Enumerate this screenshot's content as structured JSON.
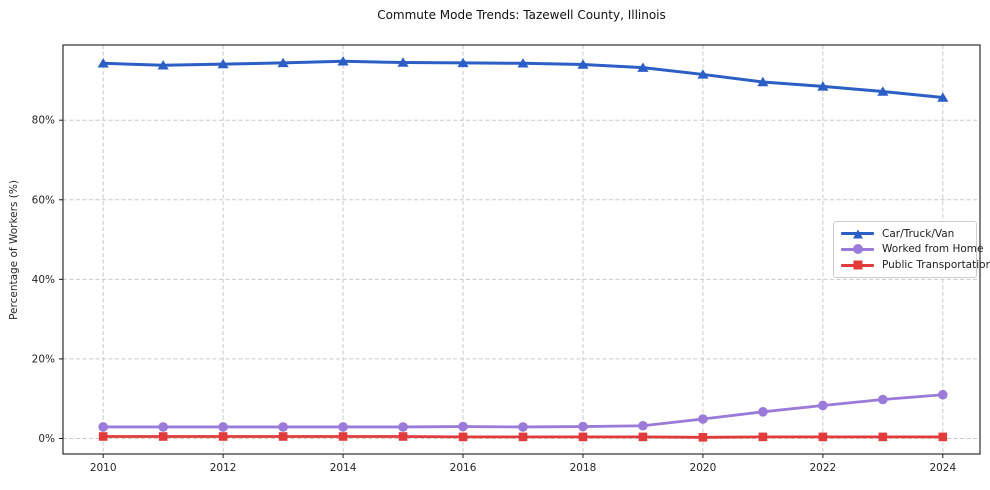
{
  "chart_data": {
    "type": "line",
    "title": "Commute Mode Trends: Tazewell County, Illinois",
    "xlabel": "",
    "ylabel": "Percentage of Workers (%)",
    "x": [
      2010,
      2011,
      2012,
      2013,
      2014,
      2015,
      2016,
      2017,
      2018,
      2019,
      2020,
      2021,
      2022,
      2023,
      2024
    ],
    "series": [
      {
        "name": "Car/Truck/Van",
        "color": "#2c5fc5",
        "marker": "triangle-up",
        "line_width": 3,
        "values": [
          94.3,
          93.8,
          94.1,
          94.4,
          94.8,
          94.5,
          94.4,
          94.3,
          94.0,
          93.2,
          91.5,
          89.6,
          88.5,
          87.2,
          85.7
        ]
      },
      {
        "name": "Worked from Home",
        "color": "#9a7bd9",
        "marker": "circle",
        "line_width": 2.8,
        "values": [
          2.9,
          2.9,
          2.9,
          2.9,
          2.9,
          2.9,
          3.0,
          2.9,
          3.0,
          3.2,
          4.9,
          6.7,
          8.3,
          9.8,
          11.0
        ]
      },
      {
        "name": "Public Transportation",
        "color": "#e23b3b",
        "marker": "square",
        "line_width": 2.8,
        "values": [
          0.5,
          0.5,
          0.5,
          0.5,
          0.5,
          0.5,
          0.4,
          0.4,
          0.4,
          0.4,
          0.3,
          0.4,
          0.4,
          0.4,
          0.4
        ]
      }
    ],
    "xticks": [
      2010,
      2012,
      2014,
      2016,
      2018,
      2020,
      2022,
      2024
    ],
    "xtick_labels": [
      "2010",
      "2012",
      "2014",
      "2016",
      "2018",
      "2020",
      "2022",
      "2024"
    ],
    "yticks": [
      0,
      20,
      40,
      60,
      80
    ],
    "ytick_labels": [
      "0%",
      "20%",
      "40%",
      "60%",
      "80%"
    ],
    "xlim": [
      2009.33,
      2024.62
    ],
    "ylim": [
      -3.9,
      98.9
    ],
    "grid": true,
    "legend_position": "center-right"
  }
}
